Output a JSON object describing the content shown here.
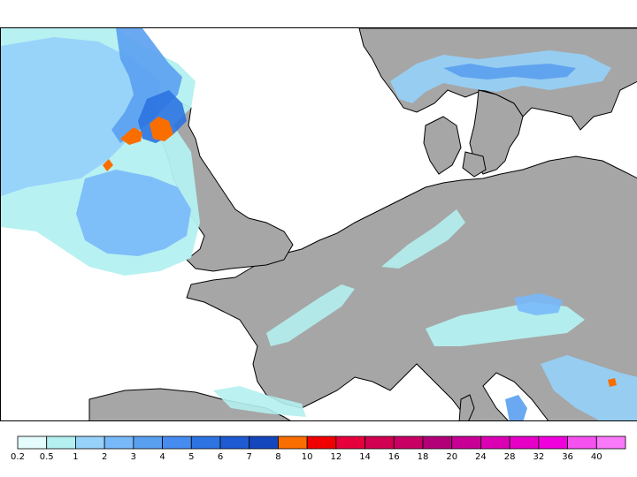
{
  "map": {
    "land_color": "#a6a6a6",
    "sea_color": "#ffffff",
    "border_color": "#000000"
  },
  "legend": {
    "bins": [
      {
        "color": "#e4fcfc"
      },
      {
        "color": "#b4f0f0"
      },
      {
        "color": "#96d2fa"
      },
      {
        "color": "#78b9fa"
      },
      {
        "color": "#5aa0f0"
      },
      {
        "color": "#468cf0"
      },
      {
        "color": "#2d73e1"
      },
      {
        "color": "#1e5ad2"
      },
      {
        "color": "#1446be"
      },
      {
        "color": "#fa6e00"
      },
      {
        "color": "#f00000"
      },
      {
        "color": "#e6003c"
      },
      {
        "color": "#d20050"
      },
      {
        "color": "#c80064"
      },
      {
        "color": "#b40078"
      },
      {
        "color": "#c80096"
      },
      {
        "color": "#dc00b4"
      },
      {
        "color": "#e600c8"
      },
      {
        "color": "#f000dc"
      },
      {
        "color": "#f550f0"
      },
      {
        "color": "#fa78fa"
      }
    ],
    "tick_labels": [
      "0.2",
      "0.5",
      "1",
      "2",
      "3",
      "4",
      "5",
      "6",
      "7",
      "8",
      "10",
      "12",
      "14",
      "16",
      "18",
      "20",
      "24",
      "28",
      "32",
      "36",
      "40"
    ]
  }
}
